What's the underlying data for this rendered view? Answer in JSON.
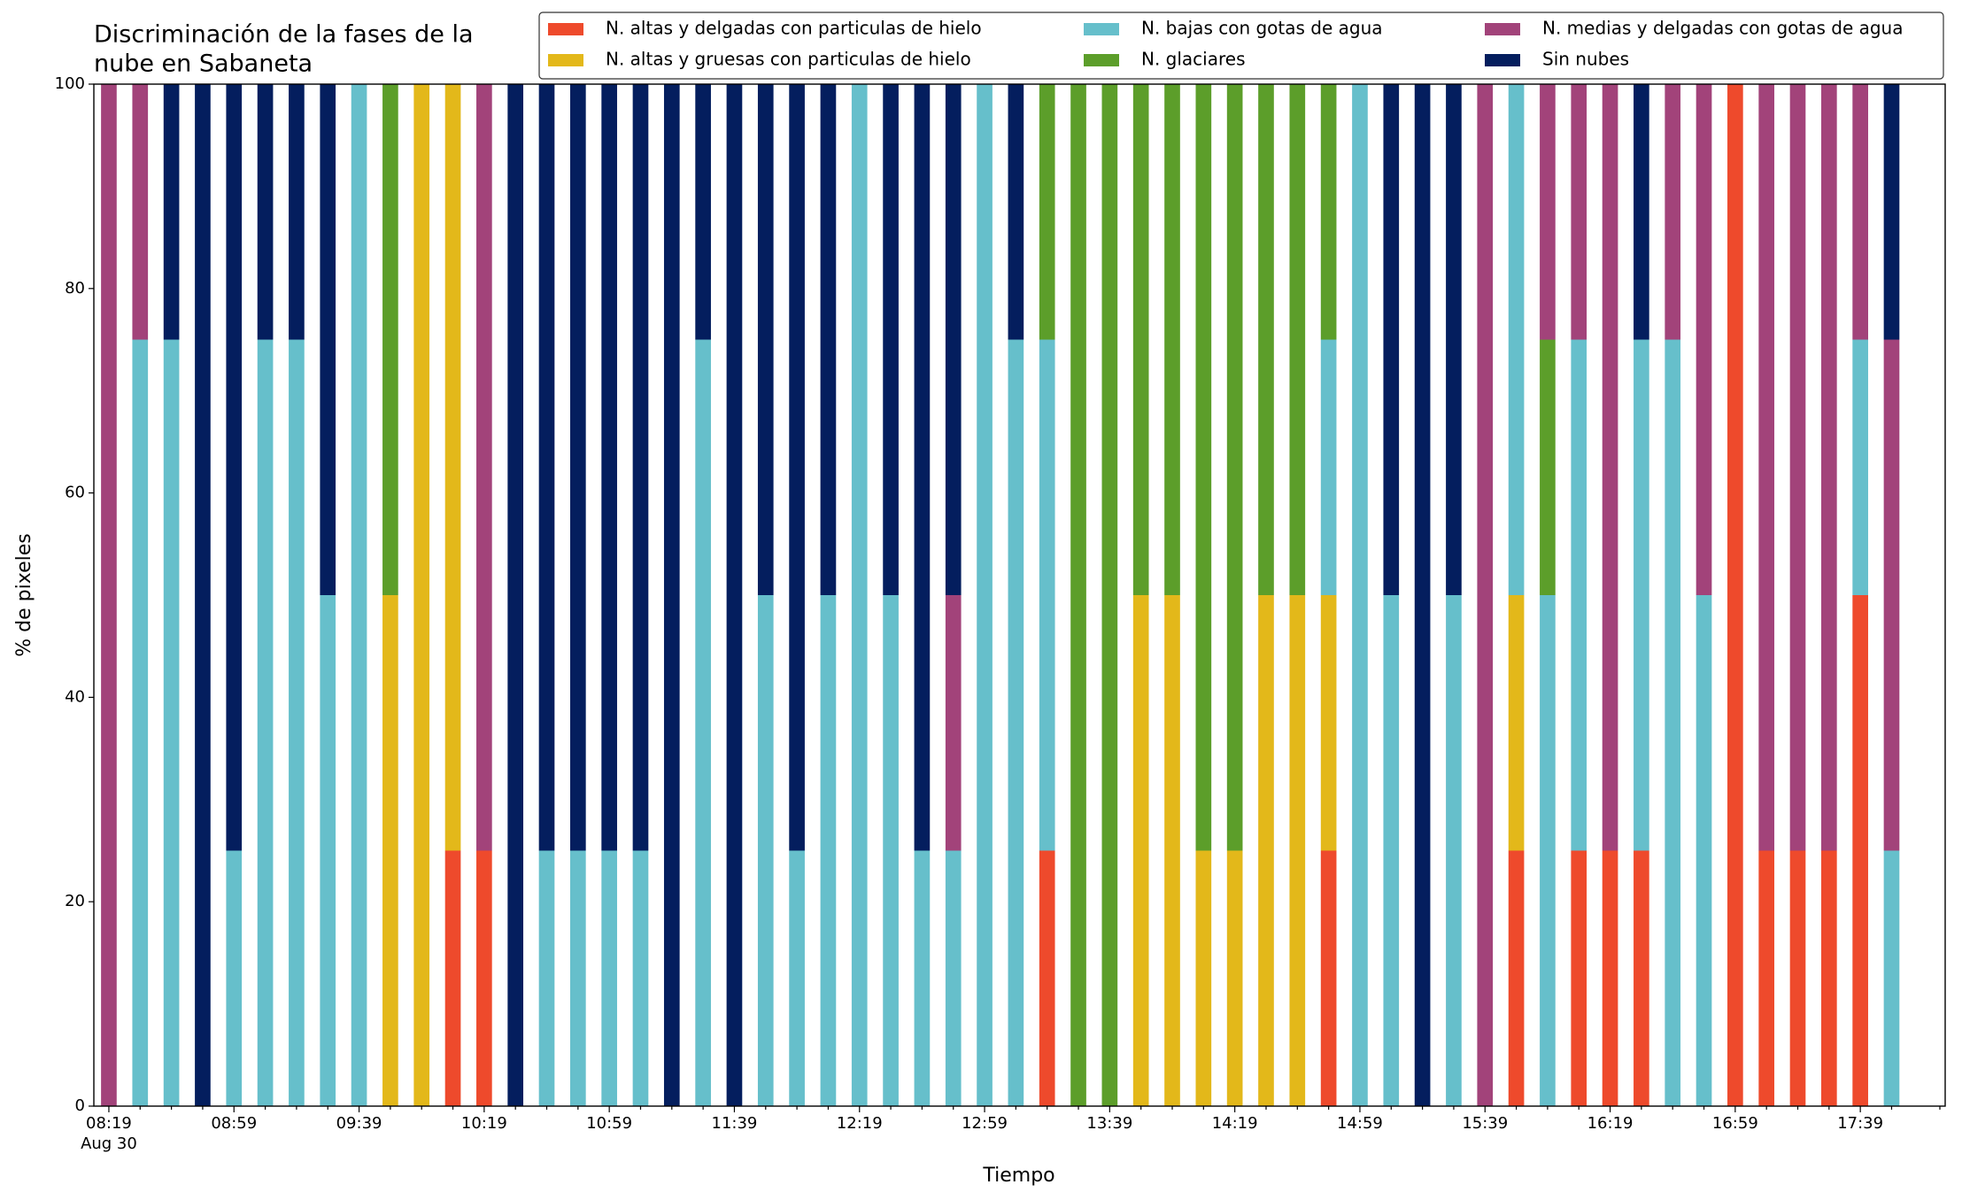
{
  "chart_data": {
    "type": "stacked_bar",
    "title": [
      "Discriminación de la fases de la",
      "nube en Sabaneta"
    ],
    "xlabel": "Tiempo",
    "ylabel": "% de pixeles",
    "categories": [
      "08:19",
      null,
      null,
      null,
      "08:59",
      null,
      null,
      null,
      "09:39",
      null,
      null,
      null,
      "10:19",
      null,
      null,
      null,
      "10:59",
      null,
      null,
      null,
      "11:39",
      null,
      null,
      null,
      "12:19",
      null,
      null,
      null,
      "12:59",
      null,
      null,
      null,
      "13:39",
      null,
      null,
      null,
      "14:19",
      null,
      null,
      null,
      "14:59",
      null,
      null,
      null,
      "15:39",
      null,
      null,
      null,
      "16:19",
      null,
      null,
      null,
      "16:59",
      null,
      null,
      null,
      "17:39",
      null
    ],
    "x_sublabel": "Aug 30",
    "ylim": [
      0,
      100
    ],
    "yticks": [
      0,
      20,
      40,
      60,
      80,
      100
    ],
    "legend": "top-right",
    "series": [
      {
        "name": "N. altas y delgadas con particulas de hielo",
        "color": "#ee4a2c",
        "values": [
          0,
          0,
          0,
          0,
          0,
          0,
          0,
          0,
          0,
          0,
          0,
          25,
          25,
          0,
          0,
          0,
          0,
          0,
          0,
          0,
          0,
          0,
          0,
          0,
          0,
          0,
          0,
          0,
          0,
          0,
          25,
          0,
          0,
          0,
          0,
          0,
          0,
          0,
          0,
          25,
          0,
          0,
          0,
          0,
          0,
          25,
          0,
          25,
          25,
          25,
          0,
          0,
          100,
          25,
          25,
          25,
          50,
          0
        ]
      },
      {
        "name": "N. altas y gruesas con particulas de hielo",
        "color": "#e3b81a",
        "values": [
          0,
          0,
          0,
          0,
          0,
          0,
          0,
          0,
          0,
          50,
          100,
          75,
          0,
          0,
          0,
          0,
          0,
          0,
          0,
          0,
          0,
          0,
          0,
          0,
          0,
          0,
          0,
          0,
          0,
          0,
          0,
          0,
          0,
          50,
          50,
          25,
          25,
          50,
          50,
          25,
          0,
          0,
          0,
          0,
          0,
          25,
          0,
          0,
          0,
          0,
          0,
          0,
          0,
          0,
          0,
          0,
          0,
          0
        ]
      },
      {
        "name": "N. bajas con gotas de agua",
        "color": "#66bfcb",
        "values": [
          0,
          75,
          75,
          0,
          25,
          75,
          75,
          50,
          100,
          0,
          0,
          0,
          0,
          0,
          25,
          25,
          25,
          25,
          0,
          75,
          0,
          50,
          25,
          50,
          100,
          50,
          25,
          25,
          100,
          75,
          50,
          0,
          0,
          0,
          0,
          0,
          0,
          0,
          0,
          25,
          100,
          50,
          0,
          50,
          0,
          50,
          50,
          50,
          0,
          50,
          75,
          50,
          0,
          0,
          0,
          0,
          25,
          25
        ]
      },
      {
        "name": "N. glaciares",
        "color": "#5c9e2a",
        "values": [
          0,
          0,
          0,
          0,
          0,
          0,
          0,
          0,
          0,
          50,
          0,
          0,
          0,
          0,
          0,
          0,
          0,
          0,
          0,
          0,
          0,
          0,
          0,
          0,
          0,
          0,
          0,
          0,
          0,
          0,
          25,
          100,
          100,
          50,
          50,
          75,
          75,
          50,
          50,
          25,
          0,
          0,
          0,
          0,
          0,
          0,
          25,
          0,
          0,
          0,
          0,
          0,
          0,
          0,
          0,
          0,
          0,
          0
        ]
      },
      {
        "name": "N. medias y delgadas con gotas de agua",
        "color": "#a2437a",
        "values": [
          100,
          25,
          0,
          0,
          0,
          0,
          0,
          0,
          0,
          0,
          0,
          0,
          75,
          0,
          0,
          0,
          0,
          0,
          0,
          0,
          0,
          0,
          0,
          0,
          0,
          0,
          0,
          25,
          0,
          0,
          0,
          0,
          0,
          0,
          0,
          0,
          0,
          0,
          0,
          0,
          0,
          0,
          0,
          0,
          100,
          0,
          25,
          25,
          75,
          0,
          25,
          50,
          0,
          75,
          75,
          75,
          25,
          50
        ]
      },
      {
        "name": "Sin nubes",
        "color": "#041e5e",
        "values": [
          0,
          0,
          25,
          100,
          75,
          25,
          25,
          50,
          0,
          0,
          0,
          0,
          0,
          100,
          75,
          75,
          75,
          75,
          100,
          25,
          100,
          50,
          75,
          50,
          0,
          50,
          75,
          50,
          0,
          25,
          0,
          0,
          0,
          0,
          0,
          0,
          0,
          0,
          0,
          0,
          0,
          50,
          100,
          50,
          0,
          0,
          0,
          0,
          0,
          25,
          0,
          0,
          0,
          0,
          0,
          0,
          0,
          25
        ]
      }
    ]
  }
}
